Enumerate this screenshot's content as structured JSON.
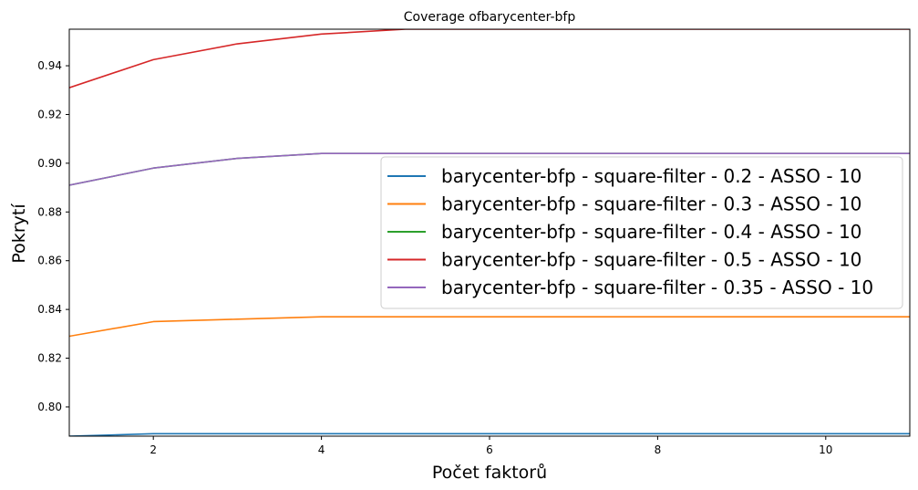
{
  "chart_data": {
    "type": "line",
    "title": "Coverage ofbarycenter-bfp",
    "xlabel": "Počet faktorů",
    "ylabel": "Pokrytí",
    "xlim": [
      1,
      11
    ],
    "ylim": [
      0.788,
      0.955
    ],
    "xticks": [
      2,
      4,
      6,
      8,
      10
    ],
    "xtick_labels": [
      "2",
      "4",
      "6",
      "8",
      "10"
    ],
    "yticks": [
      0.8,
      0.82,
      0.84,
      0.86,
      0.88,
      0.9,
      0.92,
      0.94
    ],
    "ytick_labels": [
      "0.80",
      "0.82",
      "0.84",
      "0.86",
      "0.88",
      "0.90",
      "0.92",
      "0.94"
    ],
    "grid": false,
    "legend_position": "center-right",
    "x": [
      1,
      2,
      3,
      4,
      5,
      6,
      7,
      8,
      9,
      10,
      11
    ],
    "series": [
      {
        "name": "barycenter-bfp - square-filter - 0.2 - ASSO - 10",
        "color": "#1f77b4",
        "values": [
          0.788,
          0.789,
          0.789,
          0.789,
          0.789,
          0.789,
          0.789,
          0.789,
          0.789,
          0.789,
          0.789
        ]
      },
      {
        "name": "barycenter-bfp - square-filter - 0.3 - ASSO - 10",
        "color": "#ff7f0e",
        "values": [
          0.829,
          0.835,
          0.836,
          0.837,
          0.837,
          0.837,
          0.837,
          0.837,
          0.837,
          0.837,
          0.837
        ]
      },
      {
        "name": "barycenter-bfp - square-filter - 0.4 - ASSO - 10",
        "color": "#2ca02c",
        "values": [
          0.891,
          0.898,
          0.902,
          0.904,
          0.904,
          0.904,
          0.904,
          0.904,
          0.904,
          0.904,
          0.904
        ]
      },
      {
        "name": "barycenter-bfp - square-filter - 0.5 - ASSO - 10",
        "color": "#d62728",
        "values": [
          0.931,
          0.9425,
          0.949,
          0.953,
          0.955,
          0.955,
          0.955,
          0.955,
          0.955,
          0.955,
          0.955
        ]
      },
      {
        "name": "barycenter-bfp - square-filter - 0.35 - ASSO - 10",
        "color": "#9467bd",
        "values": [
          0.891,
          0.898,
          0.902,
          0.904,
          0.904,
          0.904,
          0.904,
          0.904,
          0.904,
          0.904,
          0.904
        ]
      }
    ]
  }
}
